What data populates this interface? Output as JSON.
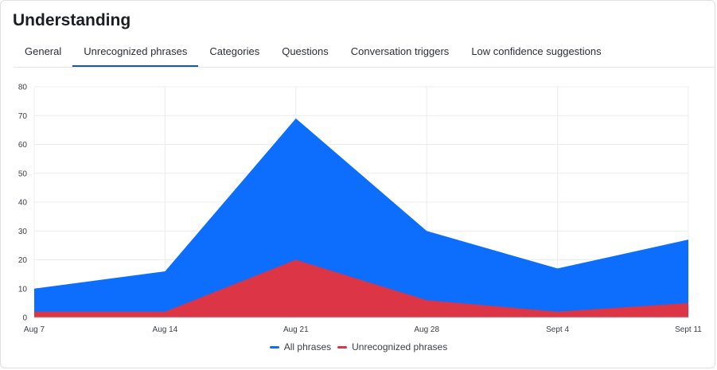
{
  "header": {
    "title": "Understanding"
  },
  "tabs": [
    {
      "label": "General",
      "active": false
    },
    {
      "label": "Unrecognized phrases",
      "active": true
    },
    {
      "label": "Categories",
      "active": false
    },
    {
      "label": "Questions",
      "active": false
    },
    {
      "label": "Conversation triggers",
      "active": false
    },
    {
      "label": "Low confidence suggestions",
      "active": false
    }
  ],
  "colors": {
    "all_phrases": "#0d6efd",
    "unrecognized_phrases": "#dc3545",
    "tab_active_underline": "#1d5b8f"
  },
  "chart_data": {
    "type": "area",
    "categories": [
      "Aug 7",
      "Aug 14",
      "Aug 21",
      "Aug 28",
      "Sept 4",
      "Sept 11"
    ],
    "series": [
      {
        "name": "All phrases",
        "values": [
          10,
          16,
          69,
          30,
          17,
          27
        ]
      },
      {
        "name": "Unrecognized phrases",
        "values": [
          2,
          2,
          20,
          6,
          2,
          5
        ]
      }
    ],
    "yticks": [
      0,
      10,
      20,
      30,
      40,
      50,
      60,
      70,
      80
    ],
    "ylim": [
      0,
      80
    ],
    "grid": true,
    "legend_position": "bottom-center"
  }
}
